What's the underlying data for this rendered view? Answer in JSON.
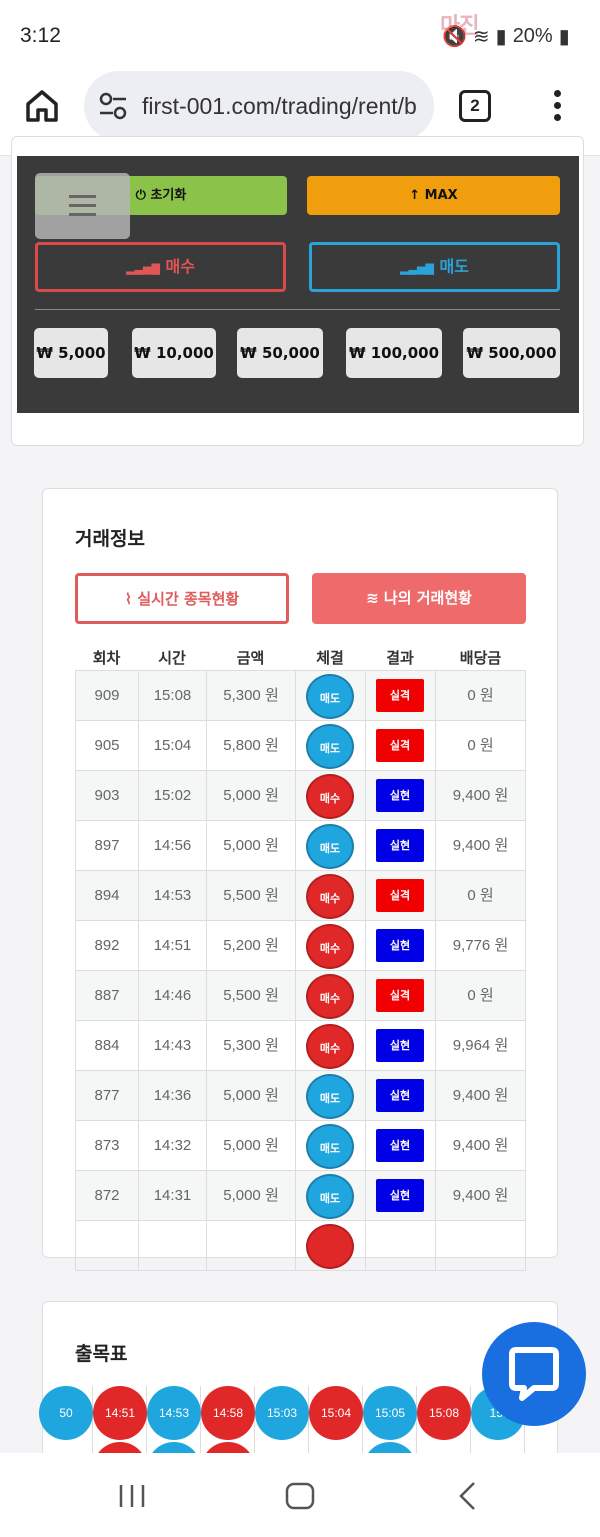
{
  "status": {
    "time": "3:12",
    "battery": "20%",
    "watermark": "마진"
  },
  "browser": {
    "url": "first-001.com/trading/rent/b",
    "tab_count": "2"
  },
  "controls": {
    "reset_label": "⏻ 초기화",
    "max_label": "↑ MAX",
    "buy_label": "매수",
    "sell_label": "매도",
    "amounts": [
      "₩ 5,000",
      "₩ 10,000",
      "₩ 50,000",
      "₩ 100,000",
      "₩ 500,000"
    ]
  },
  "trade_info": {
    "title": "거래정보",
    "tab_realtime": "실시간 종목현황",
    "tab_mine": "나의 거래현황",
    "headers": [
      "회차",
      "시간",
      "금액",
      "체결",
      "결과",
      "배당금"
    ],
    "rows": [
      {
        "round": "909",
        "time": "15:08",
        "amount": "5,300 원",
        "side": "매도",
        "result": "실격",
        "payout": "0 원"
      },
      {
        "round": "905",
        "time": "15:04",
        "amount": "5,800 원",
        "side": "매도",
        "result": "실격",
        "payout": "0 원"
      },
      {
        "round": "903",
        "time": "15:02",
        "amount": "5,000 원",
        "side": "매수",
        "result": "실현",
        "payout": "9,400 원"
      },
      {
        "round": "897",
        "time": "14:56",
        "amount": "5,000 원",
        "side": "매도",
        "result": "실현",
        "payout": "9,400 원"
      },
      {
        "round": "894",
        "time": "14:53",
        "amount": "5,500 원",
        "side": "매수",
        "result": "실격",
        "payout": "0 원"
      },
      {
        "round": "892",
        "time": "14:51",
        "amount": "5,200 원",
        "side": "매수",
        "result": "실현",
        "payout": "9,776 원"
      },
      {
        "round": "887",
        "time": "14:46",
        "amount": "5,500 원",
        "side": "매수",
        "result": "실격",
        "payout": "0 원"
      },
      {
        "round": "884",
        "time": "14:43",
        "amount": "5,300 원",
        "side": "매수",
        "result": "실현",
        "payout": "9,964 원"
      },
      {
        "round": "877",
        "time": "14:36",
        "amount": "5,000 원",
        "side": "매도",
        "result": "실현",
        "payout": "9,400 원"
      },
      {
        "round": "873",
        "time": "14:32",
        "amount": "5,000 원",
        "side": "매도",
        "result": "실현",
        "payout": "9,400 원"
      },
      {
        "round": "872",
        "time": "14:31",
        "amount": "5,000 원",
        "side": "매도",
        "result": "실현",
        "payout": "9,400 원"
      }
    ]
  },
  "outcome_table": {
    "title": "출목표",
    "entries": [
      {
        "time": "50",
        "color": "blue"
      },
      {
        "time": "14:51",
        "color": "red"
      },
      {
        "time": "14:53",
        "color": "blue"
      },
      {
        "time": "14:58",
        "color": "red"
      },
      {
        "time": "15:03",
        "color": "blue"
      },
      {
        "time": "15:04",
        "color": "red"
      },
      {
        "time": "15:05",
        "color": "blue"
      },
      {
        "time": "15:08",
        "color": "red"
      },
      {
        "time": "15:",
        "color": "blue"
      }
    ]
  },
  "colors": {
    "buy": "#e02828",
    "sell": "#20a6df",
    "fail": "#f00000",
    "win": "#0000e6",
    "chat": "#1a6fe0"
  }
}
